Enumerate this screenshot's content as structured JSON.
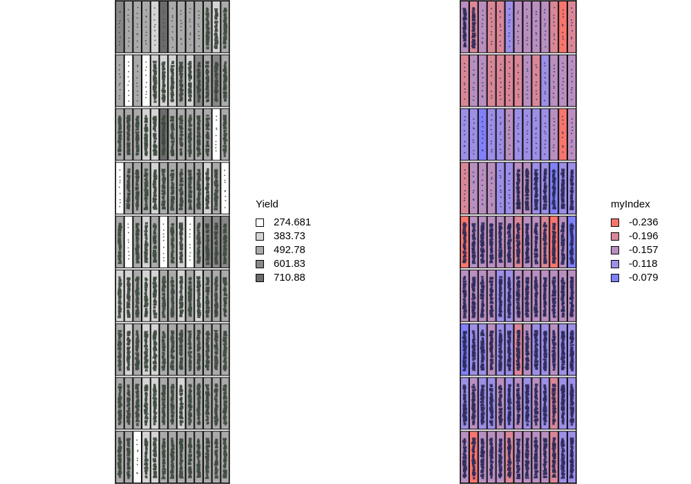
{
  "chart_data": [
    {
      "type": "heatmap",
      "name": "yield-field-map",
      "rows": 9,
      "cols": 13,
      "legend": {
        "title": "Yield",
        "placement": "right",
        "entries": [
          {
            "label": "274.681",
            "color": "#ffffff"
          },
          {
            "label": "383.73",
            "color": "#d4d4d4"
          },
          {
            "label": "492.78",
            "color": "#aaaaaa"
          },
          {
            "label": "601.83",
            "color": "#888888"
          },
          {
            "label": "710.88",
            "color": "#6b6b6b"
          }
        ]
      },
      "colors": [
        "#ffffff",
        "#d4d4d4",
        "#aaaaaa",
        "#888888",
        "#6b6b6b"
      ],
      "plant_color": "#3e4a3e",
      "grid": [
        [
          3,
          2,
          2,
          2,
          1,
          4,
          2,
          2,
          2,
          2,
          2,
          1,
          2
        ],
        [
          2,
          0,
          2,
          0,
          1,
          1,
          1,
          2,
          1,
          3,
          2,
          3,
          2
        ],
        [
          2,
          2,
          2,
          1,
          1,
          4,
          2,
          2,
          2,
          2,
          2,
          0,
          2
        ],
        [
          0,
          2,
          2,
          2,
          1,
          2,
          2,
          2,
          2,
          2,
          1,
          2,
          0
        ],
        [
          2,
          0,
          2,
          1,
          2,
          0,
          2,
          1,
          0,
          2,
          3,
          3,
          3
        ],
        [
          1,
          1,
          2,
          1,
          1,
          2,
          2,
          1,
          2,
          1,
          2,
          2,
          2
        ],
        [
          2,
          1,
          2,
          1,
          1,
          2,
          2,
          2,
          2,
          2,
          2,
          2,
          2
        ],
        [
          2,
          2,
          2,
          1,
          1,
          2,
          2,
          1,
          2,
          2,
          2,
          2,
          2
        ],
        [
          2,
          2,
          0,
          1,
          1,
          2,
          2,
          2,
          2,
          2,
          2,
          2,
          2
        ]
      ]
    },
    {
      "type": "heatmap",
      "name": "myindex-field-map",
      "rows": 9,
      "cols": 13,
      "legend": {
        "title": "myIndex",
        "placement": "right",
        "entries": [
          {
            "label": "-0.236",
            "color": "#f8766d"
          },
          {
            "label": "-0.196",
            "color": "#d98797"
          },
          {
            "label": "-0.157",
            "color": "#b98fc0"
          },
          {
            "label": "-0.118",
            "color": "#9d8ee6"
          },
          {
            "label": "-0.079",
            "color": "#8080fa"
          }
        ]
      },
      "colors": [
        "#f8766d",
        "#d98797",
        "#b98fc0",
        "#9d8ee6",
        "#8080fa"
      ],
      "plant_color": "#2b2b5a",
      "grid": [
        [
          2,
          1,
          2,
          1,
          1,
          3,
          2,
          2,
          2,
          2,
          1,
          0,
          1
        ],
        [
          1,
          2,
          2,
          1,
          1,
          1,
          1,
          2,
          1,
          3,
          2,
          2,
          2
        ],
        [
          3,
          3,
          4,
          3,
          3,
          2,
          3,
          3,
          3,
          3,
          2,
          0,
          2
        ],
        [
          1,
          2,
          2,
          2,
          3,
          3,
          2,
          2,
          3,
          3,
          4,
          3,
          3
        ],
        [
          0,
          2,
          2,
          2,
          2,
          2,
          1,
          2,
          2,
          1,
          0,
          2,
          4
        ],
        [
          2,
          2,
          2,
          2,
          3,
          3,
          2,
          2,
          2,
          2,
          2,
          2,
          2
        ],
        [
          4,
          3,
          3,
          2,
          3,
          3,
          1,
          2,
          3,
          3,
          2,
          3,
          3
        ],
        [
          3,
          2,
          3,
          3,
          2,
          3,
          2,
          3,
          2,
          3,
          1,
          3,
          3
        ],
        [
          2,
          0,
          2,
          2,
          2,
          1,
          2,
          2,
          2,
          2,
          1,
          3,
          3
        ]
      ]
    }
  ]
}
